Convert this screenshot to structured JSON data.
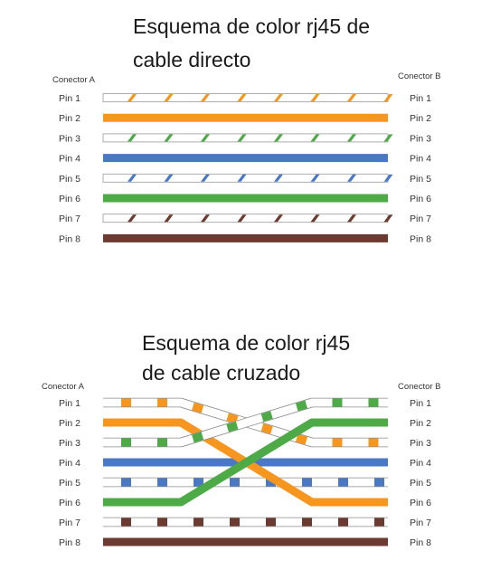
{
  "colors": {
    "orange": "#f6961e",
    "green": "#4daa47",
    "blue": "#4a78c4",
    "brown": "#6b3a30",
    "outline": "#9a9a9a"
  },
  "straight": {
    "title_line1": "Esquema de color rj45 de",
    "title_line2": "cable directo",
    "connector_a": "Conector A",
    "connector_b": "Conector B",
    "pins": [
      {
        "left": "Pin 1",
        "right": "Pin 1",
        "color": "orange",
        "striped": true,
        "to_pin": 1
      },
      {
        "left": "Pin 2",
        "right": "Pin 2",
        "color": "orange",
        "striped": false,
        "to_pin": 2
      },
      {
        "left": "Pin 3",
        "right": "Pin 3",
        "color": "green",
        "striped": true,
        "to_pin": 3
      },
      {
        "left": "Pin 4",
        "right": "Pin 4",
        "color": "blue",
        "striped": false,
        "to_pin": 4
      },
      {
        "left": "Pin 5",
        "right": "Pin 5",
        "color": "blue",
        "striped": true,
        "to_pin": 5
      },
      {
        "left": "Pin 6",
        "right": "Pin 6",
        "color": "green",
        "striped": false,
        "to_pin": 6
      },
      {
        "left": "Pin 7",
        "right": "Pin 7",
        "color": "brown",
        "striped": true,
        "to_pin": 7
      },
      {
        "left": "Pin 8",
        "right": "Pin 8",
        "color": "brown",
        "striped": false,
        "to_pin": 8
      }
    ]
  },
  "crossover": {
    "title_line1": "Esquema de color rj45",
    "title_line2": "de cable cruzado",
    "connector_a": "Conector A",
    "connector_b": "Conector B",
    "pins": [
      {
        "left": "Pin 1",
        "right": "Pin 1",
        "color": "orange",
        "striped": true,
        "to_pin": 3
      },
      {
        "left": "Pin 2",
        "right": "Pin 2",
        "color": "orange",
        "striped": false,
        "to_pin": 6
      },
      {
        "left": "Pin 3",
        "right": "Pin 3",
        "color": "green",
        "striped": true,
        "to_pin": 1
      },
      {
        "left": "Pin 4",
        "right": "Pin 4",
        "color": "blue",
        "striped": false,
        "to_pin": 4
      },
      {
        "left": "Pin 5",
        "right": "Pin 5",
        "color": "blue",
        "striped": true,
        "to_pin": 5
      },
      {
        "left": "Pin 6",
        "right": "Pin 6",
        "color": "green",
        "striped": false,
        "to_pin": 2
      },
      {
        "left": "Pin 7",
        "right": "Pin 7",
        "color": "brown",
        "striped": true,
        "to_pin": 7
      },
      {
        "left": "Pin 8",
        "right": "Pin 8",
        "color": "brown",
        "striped": false,
        "to_pin": 8
      }
    ]
  }
}
